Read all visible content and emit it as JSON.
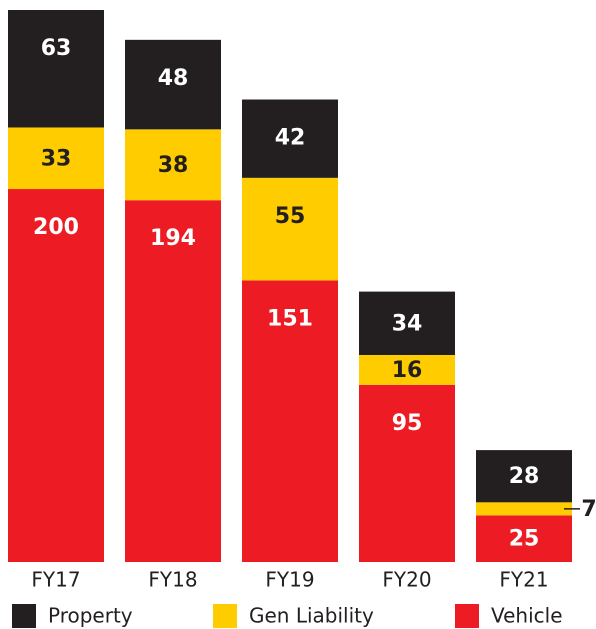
{
  "chart_data": {
    "type": "stacked_bar",
    "categories": [
      "FY17",
      "FY18",
      "FY19",
      "FY20",
      "FY21"
    ],
    "series": [
      {
        "name": "Vehicle",
        "color": "#ed1c24",
        "label_color": "#ffffff",
        "values": [
          200,
          194,
          151,
          95,
          25
        ]
      },
      {
        "name": "Gen Liability",
        "color": "#ffcc00",
        "label_color": "#231f20",
        "values": [
          33,
          38,
          55,
          16,
          7
        ]
      },
      {
        "name": "Property",
        "color": "#231f20",
        "label_color": "#ffffff",
        "values": [
          63,
          48,
          42,
          34,
          28
        ]
      }
    ],
    "legend_order": [
      2,
      1,
      0
    ]
  }
}
